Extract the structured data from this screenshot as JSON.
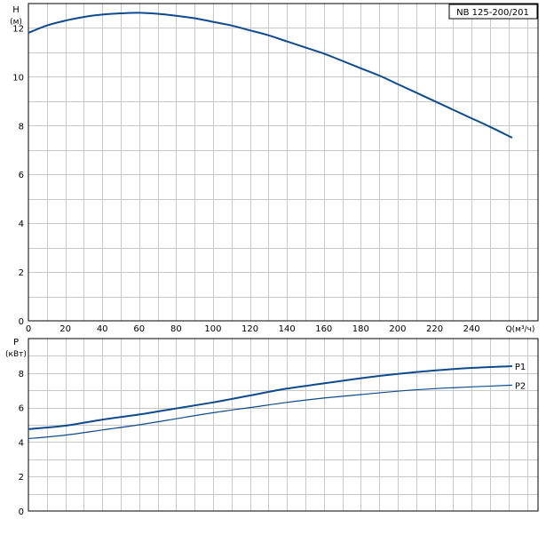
{
  "colors": {
    "curve": "#0d4b8e",
    "grid": "#c8c8c8",
    "frame": "#000000"
  },
  "chart_data": [
    {
      "id": "head",
      "type": "line",
      "title": "NB 125-200/201",
      "xlabel": "Q(м³/ч)",
      "ylabel": [
        "H",
        "(м)"
      ],
      "xlim": [
        0,
        276
      ],
      "ylim": [
        0,
        13
      ],
      "grid": true,
      "x_ticks": [
        0,
        20,
        40,
        60,
        80,
        100,
        120,
        140,
        160,
        180,
        200,
        220,
        240
      ],
      "x_tick_labels": [
        "0",
        "20",
        "40",
        "60",
        "80",
        "100",
        "120",
        "140",
        "160",
        "180",
        "200",
        "220",
        "240"
      ],
      "y_ticks": [
        0,
        2,
        4,
        6,
        8,
        10,
        12
      ],
      "y_tick_labels": [
        "0",
        "2",
        "4",
        "6",
        "8",
        "10",
        "12"
      ],
      "series": [
        {
          "x": [
            0,
            10,
            20,
            30,
            40,
            50,
            60,
            70,
            80,
            90,
            100,
            110,
            120,
            130,
            140,
            150,
            160,
            170,
            180,
            190,
            200,
            210,
            220,
            230,
            240,
            250,
            262
          ],
          "values": [
            11.8,
            12.1,
            12.3,
            12.45,
            12.55,
            12.6,
            12.62,
            12.58,
            12.5,
            12.4,
            12.25,
            12.1,
            11.9,
            11.7,
            11.45,
            11.2,
            10.95,
            10.65,
            10.35,
            10.05,
            9.7,
            9.35,
            9.0,
            8.65,
            8.3,
            7.95,
            7.5
          ]
        }
      ]
    },
    {
      "id": "power",
      "type": "line",
      "xlim": [
        0,
        276
      ],
      "ylim": [
        0,
        10
      ],
      "ylabel": [
        "P",
        "(кВт)"
      ],
      "grid": true,
      "y_ticks": [
        0,
        2,
        4,
        6,
        8
      ],
      "y_tick_labels": [
        "0",
        "2",
        "4",
        "6",
        "8"
      ],
      "series": [
        {
          "name": "P1",
          "x": [
            0,
            20,
            40,
            60,
            80,
            100,
            120,
            140,
            160,
            180,
            200,
            220,
            240,
            262
          ],
          "values": [
            4.75,
            4.95,
            5.3,
            5.6,
            5.95,
            6.3,
            6.7,
            7.1,
            7.4,
            7.7,
            7.95,
            8.15,
            8.3,
            8.4
          ]
        },
        {
          "name": "P2",
          "x": [
            0,
            20,
            40,
            60,
            80,
            100,
            120,
            140,
            160,
            180,
            200,
            220,
            240,
            262
          ],
          "values": [
            4.2,
            4.4,
            4.7,
            5.0,
            5.35,
            5.7,
            6.0,
            6.3,
            6.55,
            6.75,
            6.95,
            7.1,
            7.2,
            7.3
          ]
        }
      ]
    }
  ]
}
